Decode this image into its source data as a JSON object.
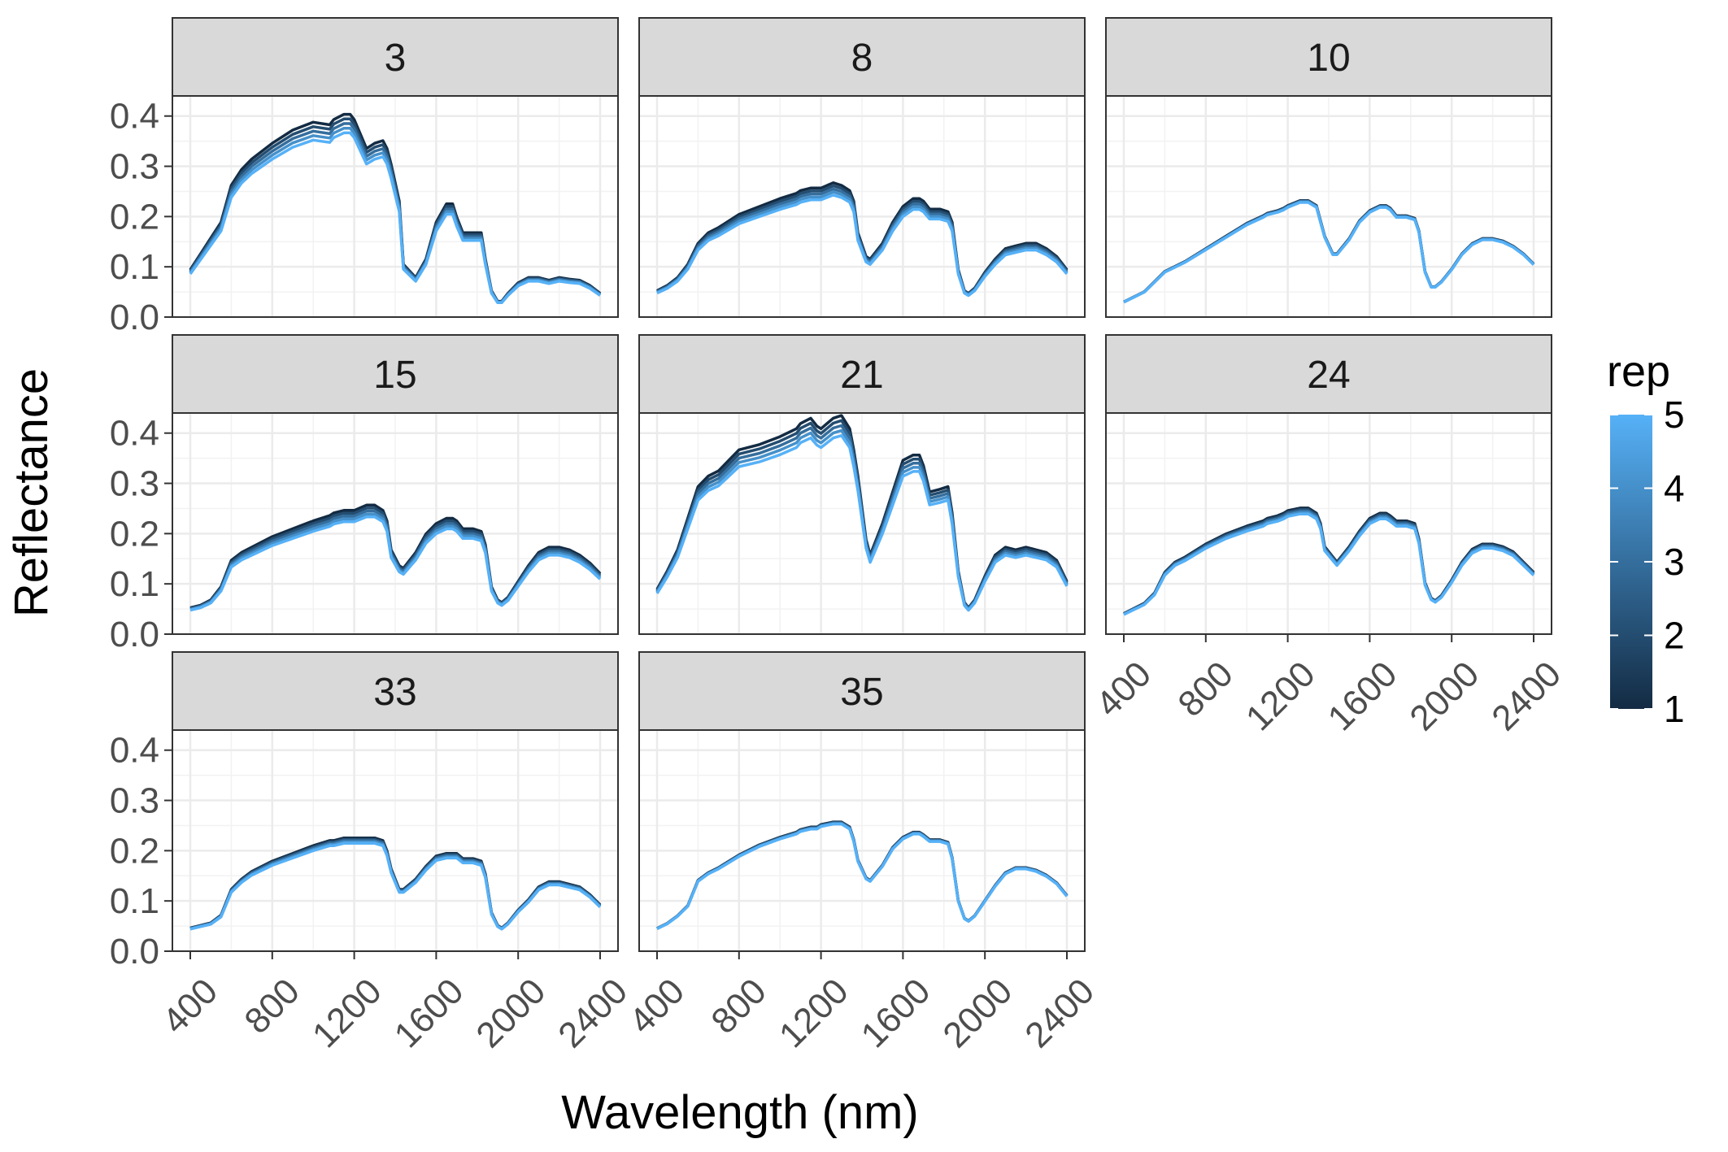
{
  "chart_data": {
    "type": "line",
    "facet_layout": "wrap 3 columns",
    "xlabel": "Wavelength (nm)",
    "ylabel": "Reflectance",
    "x_ticks": [
      400,
      800,
      1200,
      1600,
      2000,
      2400
    ],
    "x_tick_labels": [
      "400",
      "800",
      "1200",
      "1600",
      "2000",
      "2400"
    ],
    "xlim": [
      400,
      2400
    ],
    "y_ticks": [
      0.0,
      0.1,
      0.2,
      0.3,
      0.4
    ],
    "y_tick_labels": [
      "0.0",
      "0.1",
      "0.2",
      "0.3",
      "0.4"
    ],
    "ylim": [
      0,
      0.44
    ],
    "grid": true,
    "theme": "bw",
    "legend": {
      "title": "rep",
      "type": "colorbar",
      "placement": "right",
      "breaks": [
        "1",
        "2",
        "3",
        "4",
        "5"
      ],
      "color_low": "#132B43",
      "color_high": "#56B1F7"
    },
    "wavelengths": [
      400,
      450,
      500,
      550,
      600,
      650,
      700,
      800,
      900,
      1000,
      1080,
      1100,
      1150,
      1180,
      1200,
      1260,
      1300,
      1340,
      1360,
      1380,
      1420,
      1440,
      1500,
      1550,
      1600,
      1650,
      1680,
      1700,
      1730,
      1780,
      1820,
      1840,
      1870,
      1900,
      1920,
      1950,
      2000,
      2050,
      2100,
      2150,
      2200,
      2250,
      2300,
      2350,
      2400
    ],
    "panels": [
      {
        "label": "3",
        "spread": 0.012,
        "y": [
          0.09,
          0.12,
          0.15,
          0.18,
          0.25,
          0.28,
          0.3,
          0.33,
          0.355,
          0.37,
          0.365,
          0.375,
          0.385,
          0.385,
          0.375,
          0.32,
          0.33,
          0.335,
          0.32,
          0.29,
          0.22,
          0.1,
          0.075,
          0.11,
          0.18,
          0.215,
          0.215,
          0.19,
          0.16,
          0.16,
          0.16,
          0.11,
          0.05,
          0.03,
          0.03,
          0.045,
          0.065,
          0.075,
          0.075,
          0.07,
          0.075,
          0.072,
          0.07,
          0.06,
          0.045
        ]
      },
      {
        "label": "8",
        "spread": 0.012,
        "y": [
          0.05,
          0.06,
          0.075,
          0.1,
          0.14,
          0.16,
          0.17,
          0.195,
          0.21,
          0.225,
          0.235,
          0.24,
          0.245,
          0.245,
          0.245,
          0.255,
          0.25,
          0.24,
          0.22,
          0.16,
          0.115,
          0.11,
          0.14,
          0.18,
          0.21,
          0.225,
          0.225,
          0.22,
          0.205,
          0.205,
          0.2,
          0.18,
          0.09,
          0.05,
          0.045,
          0.055,
          0.085,
          0.11,
          0.13,
          0.135,
          0.14,
          0.14,
          0.13,
          0.115,
          0.09
        ]
      },
      {
        "label": "10",
        "spread": 0.002,
        "y": [
          0.03,
          0.04,
          0.05,
          0.07,
          0.09,
          0.1,
          0.11,
          0.135,
          0.16,
          0.185,
          0.2,
          0.205,
          0.21,
          0.215,
          0.22,
          0.23,
          0.23,
          0.22,
          0.19,
          0.16,
          0.125,
          0.125,
          0.155,
          0.19,
          0.21,
          0.22,
          0.22,
          0.215,
          0.2,
          0.2,
          0.195,
          0.17,
          0.09,
          0.06,
          0.06,
          0.07,
          0.095,
          0.125,
          0.145,
          0.155,
          0.155,
          0.15,
          0.14,
          0.125,
          0.105
        ]
      },
      {
        "label": "15",
        "spread": 0.012,
        "y": [
          0.05,
          0.055,
          0.065,
          0.09,
          0.14,
          0.155,
          0.165,
          0.185,
          0.2,
          0.215,
          0.225,
          0.23,
          0.235,
          0.235,
          0.235,
          0.245,
          0.245,
          0.235,
          0.215,
          0.16,
          0.13,
          0.125,
          0.155,
          0.19,
          0.21,
          0.22,
          0.22,
          0.215,
          0.2,
          0.2,
          0.195,
          0.17,
          0.09,
          0.065,
          0.06,
          0.07,
          0.1,
          0.13,
          0.155,
          0.165,
          0.165,
          0.16,
          0.15,
          0.135,
          0.115
        ]
      },
      {
        "label": "21",
        "spread": 0.012,
        "y": [
          0.085,
          0.12,
          0.16,
          0.22,
          0.28,
          0.3,
          0.31,
          0.35,
          0.36,
          0.375,
          0.39,
          0.4,
          0.41,
          0.395,
          0.39,
          0.41,
          0.415,
          0.39,
          0.35,
          0.3,
          0.18,
          0.15,
          0.21,
          0.27,
          0.33,
          0.34,
          0.34,
          0.32,
          0.27,
          0.275,
          0.28,
          0.23,
          0.12,
          0.06,
          0.05,
          0.065,
          0.11,
          0.15,
          0.165,
          0.16,
          0.165,
          0.16,
          0.155,
          0.14,
          0.1
        ]
      },
      {
        "label": "24",
        "spread": 0.006,
        "y": [
          0.04,
          0.05,
          0.06,
          0.08,
          0.12,
          0.14,
          0.15,
          0.175,
          0.195,
          0.21,
          0.22,
          0.225,
          0.23,
          0.235,
          0.24,
          0.245,
          0.245,
          0.235,
          0.215,
          0.17,
          0.15,
          0.14,
          0.17,
          0.2,
          0.225,
          0.235,
          0.235,
          0.23,
          0.22,
          0.22,
          0.215,
          0.185,
          0.1,
          0.07,
          0.065,
          0.075,
          0.105,
          0.14,
          0.165,
          0.175,
          0.175,
          0.17,
          0.16,
          0.14,
          0.12
        ]
      },
      {
        "label": "33",
        "spread": 0.006,
        "y": [
          0.045,
          0.05,
          0.055,
          0.07,
          0.12,
          0.14,
          0.155,
          0.175,
          0.19,
          0.205,
          0.215,
          0.215,
          0.22,
          0.22,
          0.22,
          0.22,
          0.22,
          0.215,
          0.195,
          0.16,
          0.12,
          0.12,
          0.14,
          0.165,
          0.185,
          0.19,
          0.19,
          0.19,
          0.18,
          0.18,
          0.175,
          0.15,
          0.075,
          0.05,
          0.045,
          0.055,
          0.08,
          0.1,
          0.125,
          0.135,
          0.135,
          0.13,
          0.125,
          0.11,
          0.09
        ]
      },
      {
        "label": "35",
        "spread": 0.002,
        "y": [
          0.045,
          0.055,
          0.07,
          0.09,
          0.14,
          0.155,
          0.165,
          0.19,
          0.21,
          0.225,
          0.235,
          0.24,
          0.245,
          0.245,
          0.25,
          0.255,
          0.255,
          0.245,
          0.22,
          0.18,
          0.145,
          0.14,
          0.17,
          0.205,
          0.225,
          0.235,
          0.235,
          0.23,
          0.22,
          0.22,
          0.215,
          0.185,
          0.1,
          0.065,
          0.06,
          0.07,
          0.1,
          0.13,
          0.155,
          0.165,
          0.165,
          0.16,
          0.15,
          0.135,
          0.11
        ]
      }
    ]
  }
}
